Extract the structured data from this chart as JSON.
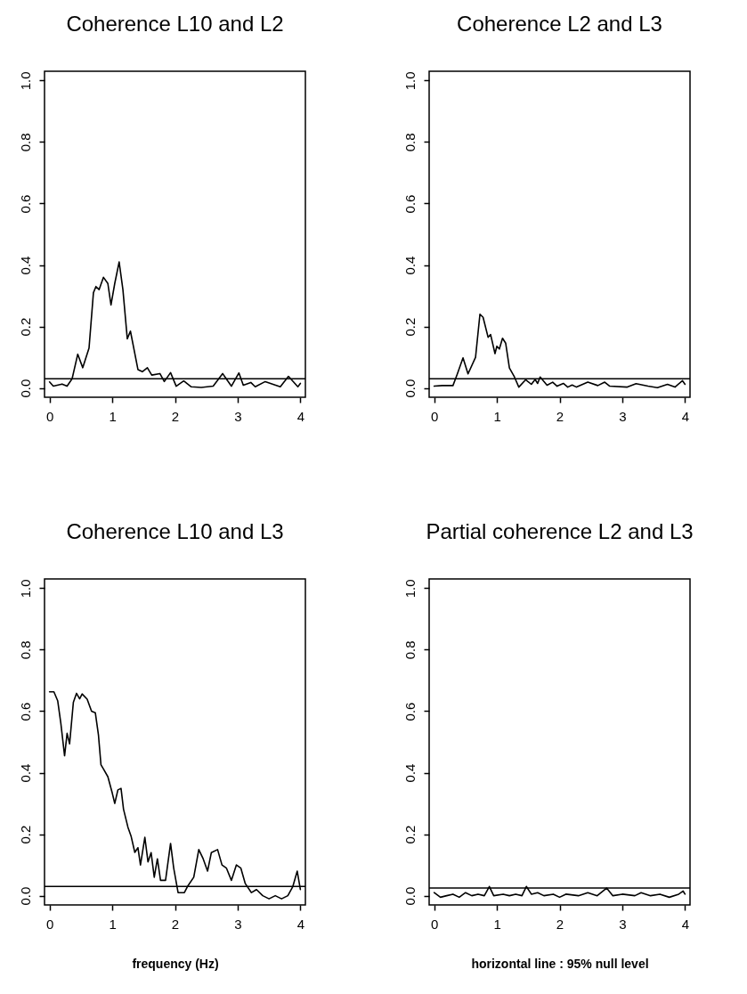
{
  "chart_data": [
    {
      "type": "line",
      "title": "Coherence L10 and L2",
      "xlim": [
        -0.08,
        4.08
      ],
      "ylim": [
        -0.03,
        1.03
      ],
      "xticks": [
        0,
        1,
        2,
        3,
        4
      ],
      "yticks": [
        {
          "value": 0,
          "label": "0.0"
        },
        {
          "value": 0.2,
          "label": "0.2"
        },
        {
          "value": 0.4,
          "label": "0.4"
        },
        {
          "value": 0.6,
          "label": "0.6"
        },
        {
          "value": 0.8,
          "label": "0.8"
        },
        {
          "value": 1,
          "label": "1.0"
        }
      ],
      "ref_lines": [
        {
          "axis": "y",
          "value": 0.03,
          "color": "#000000"
        }
      ],
      "x": [
        0,
        0.06,
        0.2,
        0.28,
        0.36,
        0.45,
        0.53,
        0.63,
        0.7,
        0.74,
        0.79,
        0.86,
        0.93,
        0.98,
        1.04,
        1.11,
        1.17,
        1.24,
        1.29,
        1.41,
        1.48,
        1.56,
        1.63,
        1.76,
        1.83,
        1.93,
        2.02,
        2.14,
        2.26,
        2.42,
        2.61,
        2.76,
        2.9,
        3.02,
        3.09,
        3.21,
        3.28,
        3.44,
        3.68,
        3.81,
        3.96,
        4.0
      ],
      "series": [
        {
          "color": "#000000",
          "values": [
            0.02,
            0.006,
            0.013,
            0.006,
            0.03,
            0.11,
            0.066,
            0.13,
            0.31,
            0.33,
            0.32,
            0.36,
            0.34,
            0.27,
            0.34,
            0.41,
            0.32,
            0.16,
            0.185,
            0.06,
            0.053,
            0.066,
            0.042,
            0.047,
            0.021,
            0.05,
            0.006,
            0.023,
            0.004,
            0.002,
            0.006,
            0.047,
            0.006,
            0.049,
            0.009,
            0.018,
            0.004,
            0.021,
            0.004,
            0.038,
            0.004,
            0.015
          ]
        }
      ]
    },
    {
      "type": "line",
      "title": "Coherence L2 and L3",
      "xlim": [
        -0.08,
        4.08
      ],
      "ylim": [
        -0.03,
        1.03
      ],
      "xticks": [
        0,
        1,
        2,
        3,
        4
      ],
      "yticks": [
        {
          "value": 0,
          "label": "0.0"
        },
        {
          "value": 0.2,
          "label": "0.2"
        },
        {
          "value": 0.4,
          "label": "0.4"
        },
        {
          "value": 0.6,
          "label": "0.6"
        },
        {
          "value": 0.8,
          "label": "0.8"
        },
        {
          "value": 1,
          "label": "1.0"
        }
      ],
      "ref_lines": [
        {
          "axis": "y",
          "value": 0.03,
          "color": "#000000"
        }
      ],
      "x": [
        0,
        0.13,
        0.3,
        0.37,
        0.46,
        0.54,
        0.66,
        0.73,
        0.78,
        0.86,
        0.9,
        0.97,
        1.0,
        1.04,
        1.09,
        1.14,
        1.2,
        1.28,
        1.35,
        1.46,
        1.55,
        1.61,
        1.65,
        1.69,
        1.8,
        1.89,
        1.96,
        2.06,
        2.13,
        2.2,
        2.27,
        2.45,
        2.61,
        2.72,
        2.8,
        3.08,
        3.22,
        3.41,
        3.56,
        3.72,
        3.84,
        3.96,
        4.0
      ],
      "series": [
        {
          "color": "#000000",
          "values": [
            0.006,
            0.008,
            0.008,
            0.046,
            0.098,
            0.046,
            0.1,
            0.24,
            0.23,
            0.165,
            0.174,
            0.112,
            0.136,
            0.127,
            0.162,
            0.146,
            0.065,
            0.036,
            0.003,
            0.027,
            0.012,
            0.028,
            0.015,
            0.036,
            0.009,
            0.019,
            0.006,
            0.015,
            0.003,
            0.01,
            0.003,
            0.019,
            0.008,
            0.019,
            0.006,
            0.003,
            0.014,
            0.006,
            0.001,
            0.012,
            0.003,
            0.024,
            0.012
          ]
        }
      ]
    },
    {
      "type": "line",
      "title": "Coherence L10 and L3",
      "xlabel": "frequency (Hz)",
      "xlim": [
        -0.08,
        4.08
      ],
      "ylim": [
        -0.03,
        1.03
      ],
      "xticks": [
        0,
        1,
        2,
        3,
        4
      ],
      "yticks": [
        {
          "value": 0,
          "label": "0.0"
        },
        {
          "value": 0.2,
          "label": "0.2"
        },
        {
          "value": 0.4,
          "label": "0.4"
        },
        {
          "value": 0.6,
          "label": "0.6"
        },
        {
          "value": 0.8,
          "label": "0.8"
        },
        {
          "value": 1,
          "label": "1.0"
        }
      ],
      "ref_lines": [
        {
          "axis": "y",
          "value": 0.03,
          "color": "#000000"
        }
      ],
      "x": [
        0,
        0.07,
        0.13,
        0.18,
        0.24,
        0.28,
        0.32,
        0.38,
        0.43,
        0.48,
        0.52,
        0.6,
        0.67,
        0.73,
        0.78,
        0.82,
        0.86,
        0.93,
        1.0,
        1.04,
        1.09,
        1.14,
        1.18,
        1.25,
        1.3,
        1.36,
        1.41,
        1.45,
        1.52,
        1.57,
        1.62,
        1.67,
        1.72,
        1.77,
        1.85,
        1.93,
        1.98,
        2.05,
        2.15,
        2.2,
        2.3,
        2.38,
        2.45,
        2.52,
        2.58,
        2.68,
        2.75,
        2.82,
        2.9,
        2.98,
        3.05,
        3.12,
        3.22,
        3.3,
        3.4,
        3.5,
        3.6,
        3.7,
        3.8,
        3.88,
        3.95,
        4.0
      ],
      "series": [
        {
          "color": "#000000",
          "values": [
            0.663,
            0.663,
            0.634,
            0.561,
            0.455,
            0.528,
            0.494,
            0.629,
            0.658,
            0.64,
            0.656,
            0.639,
            0.6,
            0.595,
            0.523,
            0.426,
            0.412,
            0.387,
            0.334,
            0.3,
            0.344,
            0.349,
            0.281,
            0.223,
            0.194,
            0.141,
            0.156,
            0.1,
            0.19,
            0.11,
            0.14,
            0.06,
            0.12,
            0.05,
            0.05,
            0.17,
            0.09,
            0.01,
            0.01,
            0.03,
            0.06,
            0.15,
            0.12,
            0.08,
            0.14,
            0.15,
            0.1,
            0.09,
            0.05,
            0.1,
            0.09,
            0.04,
            0.01,
            0.02,
            0,
            -0.01,
            0,
            -0.01,
            0,
            0.03,
            0.08,
            0.02
          ]
        }
      ]
    },
    {
      "type": "line",
      "title": "Partial coherence L2 and L3",
      "annotations": [
        "horizontal line : 95% null level"
      ],
      "xlim": [
        -0.08,
        4.08
      ],
      "ylim": [
        -0.03,
        1.03
      ],
      "xticks": [
        0,
        1,
        2,
        3,
        4
      ],
      "yticks": [
        {
          "value": 0,
          "label": "0.0"
        },
        {
          "value": 0.2,
          "label": "0.2"
        },
        {
          "value": 0.4,
          "label": "0.4"
        },
        {
          "value": 0.6,
          "label": "0.6"
        },
        {
          "value": 0.8,
          "label": "0.8"
        },
        {
          "value": 1,
          "label": "1.0"
        }
      ],
      "ref_lines": [
        {
          "axis": "y",
          "value": 0.025,
          "color": "#000000"
        }
      ],
      "x": [
        0,
        0.1,
        0.2,
        0.3,
        0.4,
        0.5,
        0.6,
        0.7,
        0.8,
        0.88,
        0.95,
        1.1,
        1.2,
        1.3,
        1.4,
        1.47,
        1.55,
        1.65,
        1.75,
        1.9,
        2.0,
        2.1,
        2.3,
        2.45,
        2.6,
        2.75,
        2.85,
        3.0,
        3.2,
        3.3,
        3.45,
        3.6,
        3.75,
        3.9,
        3.97,
        4.0
      ],
      "series": [
        {
          "color": "#000000",
          "values": [
            0.01,
            -0.005,
            0,
            0.005,
            -0.005,
            0.01,
            0,
            0.005,
            0,
            0.03,
            0,
            0.005,
            0,
            0.005,
            0,
            0.03,
            0.005,
            0.01,
            0,
            0.005,
            -0.005,
            0.005,
            0,
            0.01,
            0,
            0.025,
            0,
            0.005,
            0,
            0.01,
            0,
            0.005,
            -0.005,
            0.005,
            0.015,
            0.005
          ]
        }
      ]
    }
  ]
}
